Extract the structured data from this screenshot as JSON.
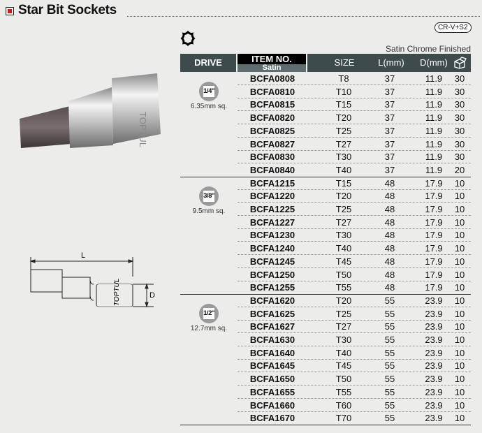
{
  "title": "Star Bit Sockets",
  "material_badge": "CR-V+S2",
  "finish": "Satin Chrome Finished",
  "header": {
    "drive": "DRIVE",
    "item_no": "ITEM NO.",
    "item_sub": "Satin",
    "size": "SIZE",
    "l": "L(mm)",
    "d": "D(mm)",
    "qty_icon": "box-quantity-icon"
  },
  "diagram": {
    "l_label": "L",
    "d_label": "D",
    "brand": "TOPTUL"
  },
  "colors": {
    "header": "#3e4b4d",
    "accent": "#e01010"
  },
  "groups": [
    {
      "drive": "1/4\"",
      "square": "6.35mm sq.",
      "rows": [
        [
          "BCFA0808",
          "T8",
          "37",
          "11.9",
          "30"
        ],
        [
          "BCFA0810",
          "T10",
          "37",
          "11.9",
          "30"
        ],
        [
          "BCFA0815",
          "T15",
          "37",
          "11.9",
          "30"
        ],
        [
          "BCFA0820",
          "T20",
          "37",
          "11.9",
          "30"
        ],
        [
          "BCFA0825",
          "T25",
          "37",
          "11.9",
          "30"
        ],
        [
          "BCFA0827",
          "T27",
          "37",
          "11.9",
          "30"
        ],
        [
          "BCFA0830",
          "T30",
          "37",
          "11.9",
          "30"
        ],
        [
          "BCFA0840",
          "T40",
          "37",
          "11.9",
          "20"
        ]
      ]
    },
    {
      "drive": "3/8\"",
      "square": "9.5mm sq.",
      "rows": [
        [
          "BCFA1215",
          "T15",
          "48",
          "17.9",
          "10"
        ],
        [
          "BCFA1220",
          "T20",
          "48",
          "17.9",
          "10"
        ],
        [
          "BCFA1225",
          "T25",
          "48",
          "17.9",
          "10"
        ],
        [
          "BCFA1227",
          "T27",
          "48",
          "17.9",
          "10"
        ],
        [
          "BCFA1230",
          "T30",
          "48",
          "17.9",
          "10"
        ],
        [
          "BCFA1240",
          "T40",
          "48",
          "17.9",
          "10"
        ],
        [
          "BCFA1245",
          "T45",
          "48",
          "17.9",
          "10"
        ],
        [
          "BCFA1250",
          "T50",
          "48",
          "17.9",
          "10"
        ],
        [
          "BCFA1255",
          "T55",
          "48",
          "17.9",
          "10"
        ]
      ]
    },
    {
      "drive": "1/2\"",
      "square": "12.7mm sq.",
      "rows": [
        [
          "BCFA1620",
          "T20",
          "55",
          "23.9",
          "10"
        ],
        [
          "BCFA1625",
          "T25",
          "55",
          "23.9",
          "10"
        ],
        [
          "BCFA1627",
          "T27",
          "55",
          "23.9",
          "10"
        ],
        [
          "BCFA1630",
          "T30",
          "55",
          "23.9",
          "10"
        ],
        [
          "BCFA1640",
          "T40",
          "55",
          "23.9",
          "10"
        ],
        [
          "BCFA1645",
          "T45",
          "55",
          "23.9",
          "10"
        ],
        [
          "BCFA1650",
          "T50",
          "55",
          "23.9",
          "10"
        ],
        [
          "BCFA1655",
          "T55",
          "55",
          "23.9",
          "10"
        ],
        [
          "BCFA1660",
          "T60",
          "55",
          "23.9",
          "10"
        ],
        [
          "BCFA1670",
          "T70",
          "55",
          "23.9",
          "10"
        ]
      ]
    }
  ]
}
